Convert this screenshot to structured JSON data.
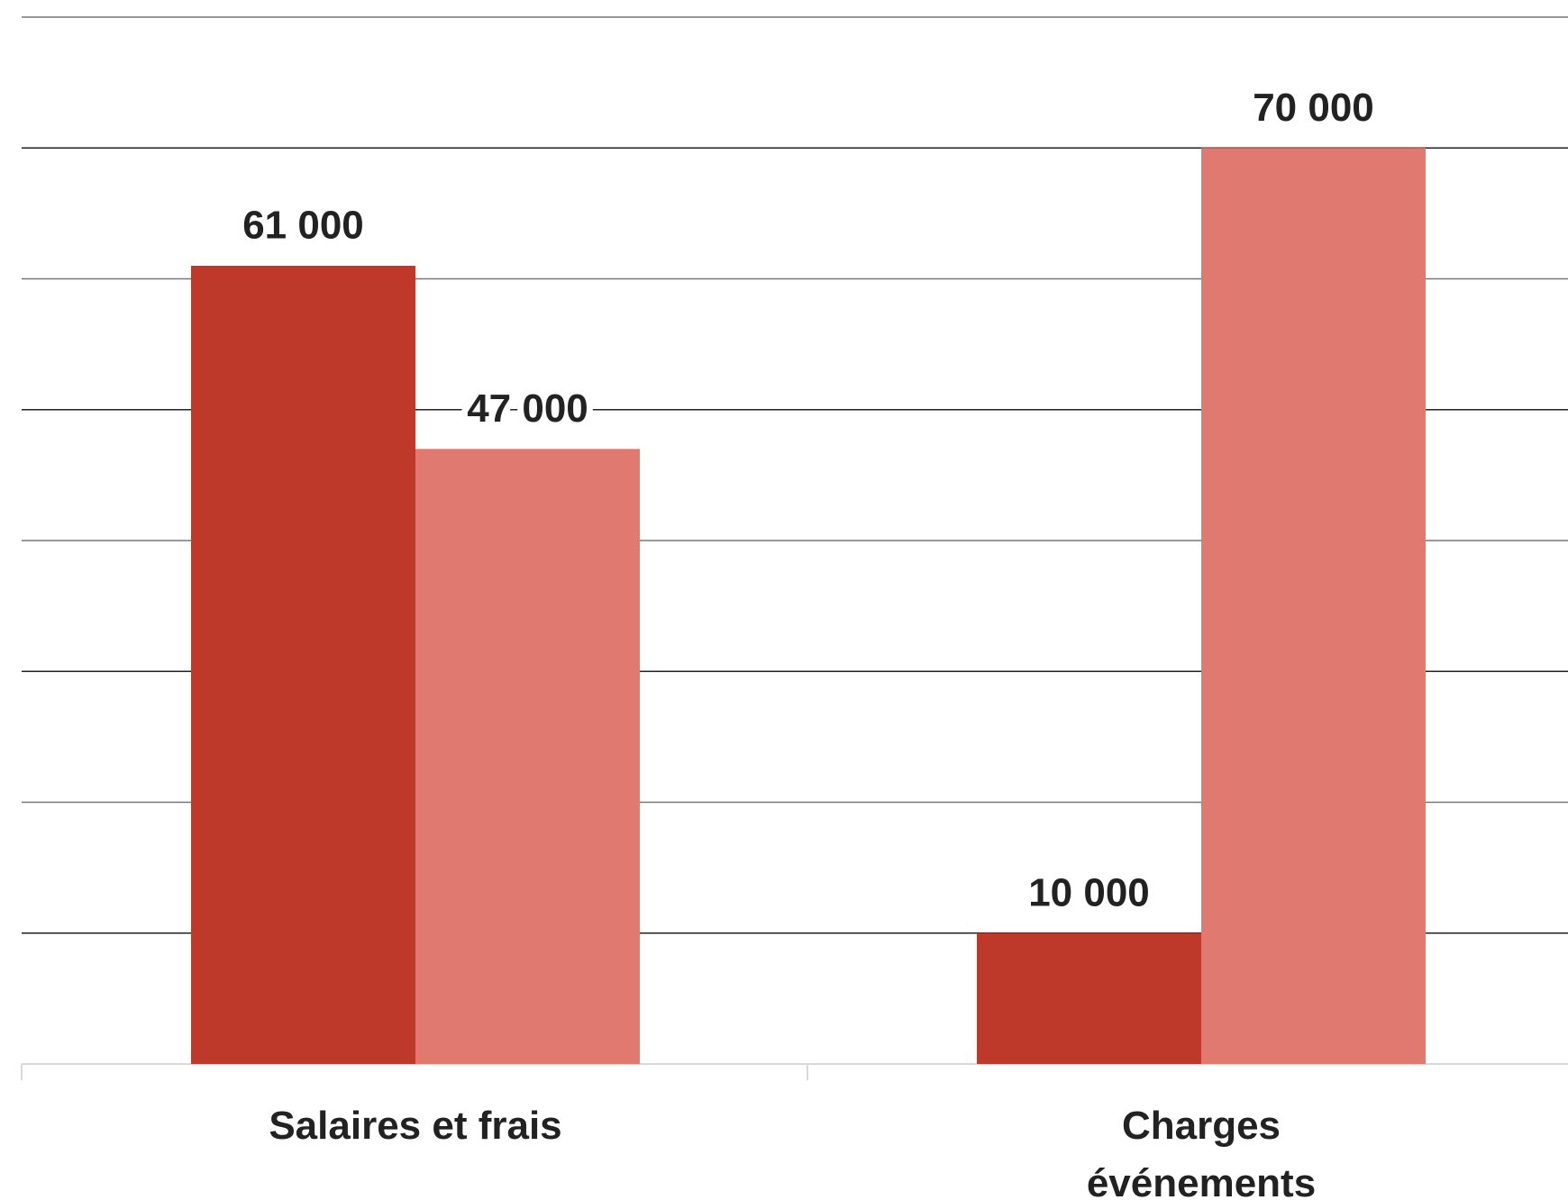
{
  "chart_data": {
    "type": "bar",
    "categories": [
      "Salaires et frais",
      "Charges événements"
    ],
    "series": [
      {
        "color": "#bf392b",
        "values": [
          61000,
          10000
        ],
        "value_labels": [
          "61 000",
          "10 000"
        ]
      },
      {
        "color": "#e07a70",
        "values": [
          47000,
          70000
        ],
        "value_labels": [
          "47 000",
          "70 000"
        ]
      }
    ],
    "ylim": [
      0,
      80000
    ],
    "yticks": [
      0,
      10000,
      20000,
      30000,
      40000,
      50000,
      60000,
      70000,
      80000
    ],
    "grid": true
  }
}
